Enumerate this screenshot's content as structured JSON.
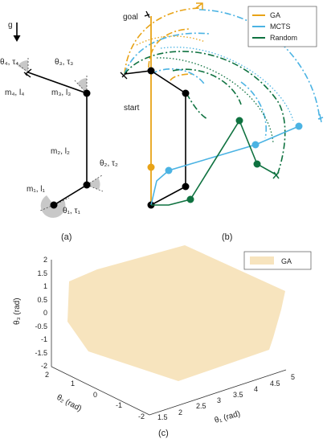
{
  "panel_a": {
    "caption": "(a)",
    "gravity": "g",
    "theta4": "θ₄, τ₄",
    "theta3": "θ₃, τ₃",
    "link4": "m₄, l₄",
    "link3": "m₃, l₃",
    "link2": "m₂, l₂",
    "theta2": "θ₂, τ₂",
    "link1": "m₁, l₁",
    "theta1": "θ₁, τ₁"
  },
  "panel_b": {
    "caption": "(b)",
    "goal_label": "goal",
    "start_label": "start",
    "legend": [
      {
        "name": "GA",
        "color": "#E8A317"
      },
      {
        "name": "MCTS",
        "color": "#4BB3E3"
      },
      {
        "name": "Random",
        "color": "#0F7240"
      }
    ]
  },
  "panel_c": {
    "caption": "(c)",
    "legend_label": "GA",
    "fill_color": "#F7E4BE",
    "z_label": "θ₃ (rad)",
    "y_label": "θ₂ (rad)",
    "x_label": "θ₁ (rad)",
    "z_ticks": [
      "2",
      "1.5",
      "1",
      "0.5",
      "0",
      "-0.5",
      "-1",
      "-1.5",
      "-2"
    ],
    "y_ticks": [
      "2",
      "1",
      "0",
      "-1",
      "-2"
    ],
    "x_ticks": [
      "1.5",
      "2",
      "2.5",
      "3",
      "3.5",
      "4",
      "4.5",
      "5"
    ]
  }
}
